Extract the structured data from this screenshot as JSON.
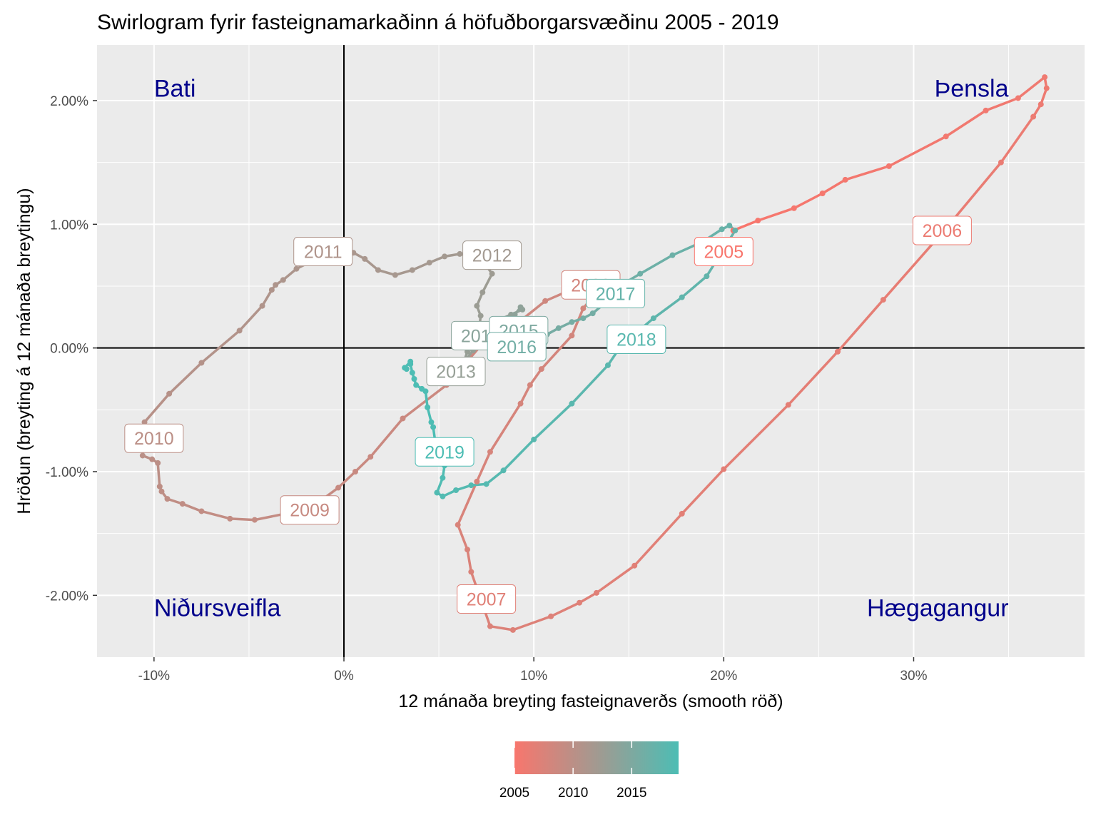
{
  "chart_data": {
    "type": "line",
    "title": "Swirlogram fyrir fasteignamarkaðinn á höfuðborgarsvæðinu 2005 - 2019",
    "xlabel": "12 mánaða breyting fasteignaverðs (smooth röð)",
    "ylabel": "Hröðun (breyting á 12 mánaða breytingu)",
    "xlim": [
      -13,
      39
    ],
    "ylim": [
      -2.5,
      2.45
    ],
    "x_ticks": [
      -10,
      0,
      10,
      20,
      30
    ],
    "x_tick_labels": [
      "-10%",
      "0%",
      "10%",
      "20%",
      "30%"
    ],
    "y_ticks": [
      -2,
      -1,
      0,
      1,
      2
    ],
    "y_tick_labels": [
      "-2.00%",
      "-1.00%",
      "0.00%",
      "1.00%",
      "2.00%"
    ],
    "grid": true,
    "reference_lines": {
      "x": 0,
      "y": 0
    },
    "quadrant_labels": [
      {
        "text": "Bati",
        "x": -10,
        "y": 2.1,
        "anchor": "start"
      },
      {
        "text": "Þensla",
        "x": 35,
        "y": 2.1,
        "anchor": "end"
      },
      {
        "text": "Niðursveifla",
        "x": -10,
        "y": -2.1,
        "anchor": "start"
      },
      {
        "text": "Hægagangur",
        "x": 35,
        "y": -2.1,
        "anchor": "end"
      }
    ],
    "color_scale": {
      "from": "#f8766d",
      "to": "#4dbdb4",
      "min": 2005,
      "max": 2019
    },
    "legend": {
      "position": "bottom",
      "ticks": [
        2005,
        2010,
        2015
      ],
      "tick_labels": [
        "2005",
        "2010",
        "2015"
      ]
    },
    "path": [
      {
        "x": 20.5,
        "y": 0.95,
        "t": 2005.0
      },
      {
        "x": 21.8,
        "y": 1.03,
        "t": 2005.08
      },
      {
        "x": 23.7,
        "y": 1.13,
        "t": 2005.17
      },
      {
        "x": 25.2,
        "y": 1.25,
        "t": 2005.25
      },
      {
        "x": 26.4,
        "y": 1.36,
        "t": 2005.33
      },
      {
        "x": 28.7,
        "y": 1.47,
        "t": 2005.42
      },
      {
        "x": 31.7,
        "y": 1.71,
        "t": 2005.5
      },
      {
        "x": 33.8,
        "y": 1.92,
        "t": 2005.58
      },
      {
        "x": 35.5,
        "y": 2.02,
        "t": 2005.67
      },
      {
        "x": 36.9,
        "y": 2.19,
        "t": 2005.75
      },
      {
        "x": 37.0,
        "y": 2.1,
        "t": 2005.83
      },
      {
        "x": 36.7,
        "y": 1.97,
        "t": 2005.92
      },
      {
        "x": 36.3,
        "y": 1.87,
        "t": 2006.0
      },
      {
        "x": 34.6,
        "y": 1.5,
        "t": 2006.17
      },
      {
        "x": 31.5,
        "y": 0.93,
        "t": 2006.33
      },
      {
        "x": 28.4,
        "y": 0.39,
        "t": 2006.5
      },
      {
        "x": 26.0,
        "y": -0.03,
        "t": 2006.58
      },
      {
        "x": 23.4,
        "y": -0.46,
        "t": 2006.67
      },
      {
        "x": 20.0,
        "y": -0.98,
        "t": 2006.75
      },
      {
        "x": 17.8,
        "y": -1.34,
        "t": 2006.83
      },
      {
        "x": 15.3,
        "y": -1.76,
        "t": 2006.92
      },
      {
        "x": 13.3,
        "y": -1.98,
        "t": 2007.0
      },
      {
        "x": 12.4,
        "y": -2.06,
        "t": 2007.08
      },
      {
        "x": 10.9,
        "y": -2.17,
        "t": 2007.17
      },
      {
        "x": 8.9,
        "y": -2.28,
        "t": 2007.25
      },
      {
        "x": 7.7,
        "y": -2.25,
        "t": 2007.33
      },
      {
        "x": 6.7,
        "y": -1.81,
        "t": 2007.42
      },
      {
        "x": 6.5,
        "y": -1.63,
        "t": 2007.5
      },
      {
        "x": 6.0,
        "y": -1.43,
        "t": 2007.58
      },
      {
        "x": 7.0,
        "y": -1.08,
        "t": 2007.67
      },
      {
        "x": 7.7,
        "y": -0.84,
        "t": 2007.75
      },
      {
        "x": 9.3,
        "y": -0.45,
        "t": 2007.83
      },
      {
        "x": 9.8,
        "y": -0.3,
        "t": 2007.92
      },
      {
        "x": 10.4,
        "y": -0.17,
        "t": 2008.0
      },
      {
        "x": 12.0,
        "y": 0.1,
        "t": 2008.08
      },
      {
        "x": 12.6,
        "y": 0.32,
        "t": 2008.17
      },
      {
        "x": 13.3,
        "y": 0.45,
        "t": 2008.25
      },
      {
        "x": 12.4,
        "y": 0.5,
        "t": 2008.33
      },
      {
        "x": 10.6,
        "y": 0.38,
        "t": 2008.42
      },
      {
        "x": 9.3,
        "y": 0.22,
        "t": 2008.5
      },
      {
        "x": 7.5,
        "y": 0.07,
        "t": 2008.58
      },
      {
        "x": 5.4,
        "y": -0.3,
        "t": 2008.67
      },
      {
        "x": 3.1,
        "y": -0.57,
        "t": 2008.75
      },
      {
        "x": 1.4,
        "y": -0.88,
        "t": 2008.83
      },
      {
        "x": 0.6,
        "y": -1.0,
        "t": 2008.92
      },
      {
        "x": -0.3,
        "y": -1.13,
        "t": 2009.0
      },
      {
        "x": -1.8,
        "y": -1.3,
        "t": 2009.17
      },
      {
        "x": -4.7,
        "y": -1.39,
        "t": 2009.33
      },
      {
        "x": -6.0,
        "y": -1.38,
        "t": 2009.42
      },
      {
        "x": -7.5,
        "y": -1.32,
        "t": 2009.5
      },
      {
        "x": -8.5,
        "y": -1.26,
        "t": 2009.58
      },
      {
        "x": -9.3,
        "y": -1.22,
        "t": 2009.67
      },
      {
        "x": -9.6,
        "y": -1.16,
        "t": 2009.75
      },
      {
        "x": -9.7,
        "y": -1.12,
        "t": 2009.83
      },
      {
        "x": -9.8,
        "y": -0.93,
        "t": 2009.92
      },
      {
        "x": -10.1,
        "y": -0.9,
        "t": 2010.0
      },
      {
        "x": -10.6,
        "y": -0.87,
        "t": 2010.08
      },
      {
        "x": -10.5,
        "y": -0.6,
        "t": 2010.25
      },
      {
        "x": -9.2,
        "y": -0.37,
        "t": 2010.42
      },
      {
        "x": -7.5,
        "y": -0.12,
        "t": 2010.58
      },
      {
        "x": -5.5,
        "y": 0.14,
        "t": 2010.75
      },
      {
        "x": -4.3,
        "y": 0.34,
        "t": 2010.92
      },
      {
        "x": -3.8,
        "y": 0.47,
        "t": 2011.0
      },
      {
        "x": -3.6,
        "y": 0.51,
        "t": 2011.08
      },
      {
        "x": -3.2,
        "y": 0.55,
        "t": 2011.17
      },
      {
        "x": -2.5,
        "y": 0.64,
        "t": 2011.25
      },
      {
        "x": -1.2,
        "y": 0.74,
        "t": 2011.33
      },
      {
        "x": 0.5,
        "y": 0.77,
        "t": 2011.42
      },
      {
        "x": 1.1,
        "y": 0.72,
        "t": 2011.5
      },
      {
        "x": 1.8,
        "y": 0.63,
        "t": 2011.58
      },
      {
        "x": 2.7,
        "y": 0.59,
        "t": 2011.67
      },
      {
        "x": 3.6,
        "y": 0.63,
        "t": 2011.75
      },
      {
        "x": 4.5,
        "y": 0.69,
        "t": 2011.83
      },
      {
        "x": 5.3,
        "y": 0.74,
        "t": 2011.92
      },
      {
        "x": 6.1,
        "y": 0.76,
        "t": 2012.0
      },
      {
        "x": 6.7,
        "y": 0.75,
        "t": 2012.08
      },
      {
        "x": 7.2,
        "y": 0.73,
        "t": 2012.17
      },
      {
        "x": 7.8,
        "y": 0.6,
        "t": 2012.33
      },
      {
        "x": 7.3,
        "y": 0.45,
        "t": 2012.5
      },
      {
        "x": 7.0,
        "y": 0.34,
        "t": 2012.58
      },
      {
        "x": 7.2,
        "y": 0.26,
        "t": 2012.67
      },
      {
        "x": 7.1,
        "y": 0.12,
        "t": 2012.75
      },
      {
        "x": 6.8,
        "y": 0.03,
        "t": 2012.83
      },
      {
        "x": 6.5,
        "y": -0.03,
        "t": 2012.92
      },
      {
        "x": 6.3,
        "y": -0.12,
        "t": 2013.0
      },
      {
        "x": 6.8,
        "y": -0.02,
        "t": 2013.08
      },
      {
        "x": 7.3,
        "y": 0.08,
        "t": 2013.17
      },
      {
        "x": 7.7,
        "y": 0.17,
        "t": 2013.25
      },
      {
        "x": 8.2,
        "y": 0.23,
        "t": 2013.33
      },
      {
        "x": 8.8,
        "y": 0.27,
        "t": 2013.42
      },
      {
        "x": 9.4,
        "y": 0.31,
        "t": 2013.5
      },
      {
        "x": 9.3,
        "y": 0.33,
        "t": 2013.58
      },
      {
        "x": 9.0,
        "y": 0.27,
        "t": 2013.67
      },
      {
        "x": 8.6,
        "y": 0.2,
        "t": 2013.75
      },
      {
        "x": 8.0,
        "y": 0.13,
        "t": 2013.83
      },
      {
        "x": 7.7,
        "y": 0.09,
        "t": 2013.92
      },
      {
        "x": 7.8,
        "y": 0.07,
        "t": 2014.0
      },
      {
        "x": 7.9,
        "y": 0.05,
        "t": 2014.17
      },
      {
        "x": 8.1,
        "y": 0.03,
        "t": 2014.33
      },
      {
        "x": 8.0,
        "y": -0.02,
        "t": 2014.5
      },
      {
        "x": 8.0,
        "y": -0.05,
        "t": 2014.67
      },
      {
        "x": 8.1,
        "y": -0.08,
        "t": 2014.83
      },
      {
        "x": 8.3,
        "y": -0.06,
        "t": 2015.0
      },
      {
        "x": 8.8,
        "y": -0.01,
        "t": 2015.17
      },
      {
        "x": 9.4,
        "y": 0.05,
        "t": 2015.33
      },
      {
        "x": 10.1,
        "y": 0.08,
        "t": 2015.5
      },
      {
        "x": 10.7,
        "y": 0.11,
        "t": 2015.58
      },
      {
        "x": 11.3,
        "y": 0.16,
        "t": 2015.67
      },
      {
        "x": 12.0,
        "y": 0.21,
        "t": 2015.75
      },
      {
        "x": 12.6,
        "y": 0.24,
        "t": 2015.83
      },
      {
        "x": 13.1,
        "y": 0.28,
        "t": 2015.92
      },
      {
        "x": 13.8,
        "y": 0.37,
        "t": 2016.0
      },
      {
        "x": 14.5,
        "y": 0.5,
        "t": 2016.17
      },
      {
        "x": 15.6,
        "y": 0.6,
        "t": 2016.33
      },
      {
        "x": 17.3,
        "y": 0.75,
        "t": 2016.5
      },
      {
        "x": 18.9,
        "y": 0.86,
        "t": 2016.67
      },
      {
        "x": 19.9,
        "y": 0.96,
        "t": 2016.83
      },
      {
        "x": 20.3,
        "y": 0.99,
        "t": 2016.92
      },
      {
        "x": 20.6,
        "y": 0.95,
        "t": 2017.0
      },
      {
        "x": 20.2,
        "y": 0.85,
        "t": 2017.08
      },
      {
        "x": 19.1,
        "y": 0.58,
        "t": 2017.25
      },
      {
        "x": 17.8,
        "y": 0.41,
        "t": 2017.42
      },
      {
        "x": 16.3,
        "y": 0.24,
        "t": 2017.58
      },
      {
        "x": 14.6,
        "y": 0.02,
        "t": 2017.75
      },
      {
        "x": 13.9,
        "y": -0.14,
        "t": 2017.83
      },
      {
        "x": 12.0,
        "y": -0.45,
        "t": 2017.92
      },
      {
        "x": 10.0,
        "y": -0.74,
        "t": 2018.08
      },
      {
        "x": 8.4,
        "y": -0.99,
        "t": 2018.25
      },
      {
        "x": 7.5,
        "y": -1.1,
        "t": 2018.33
      },
      {
        "x": 6.7,
        "y": -1.11,
        "t": 2018.42
      },
      {
        "x": 5.9,
        "y": -1.15,
        "t": 2018.5
      },
      {
        "x": 5.2,
        "y": -1.2,
        "t": 2018.58
      },
      {
        "x": 4.9,
        "y": -1.17,
        "t": 2018.67
      },
      {
        "x": 5.2,
        "y": -1.05,
        "t": 2018.75
      },
      {
        "x": 5.3,
        "y": -0.95,
        "t": 2018.83
      },
      {
        "x": 4.8,
        "y": -0.75,
        "t": 2018.92
      },
      {
        "x": 4.7,
        "y": -0.64,
        "t": 2019.0
      },
      {
        "x": 4.6,
        "y": -0.6,
        "t": 2019.08
      },
      {
        "x": 4.4,
        "y": -0.48,
        "t": 2019.17
      },
      {
        "x": 4.3,
        "y": -0.35,
        "t": 2019.25
      },
      {
        "x": 4.1,
        "y": -0.33,
        "t": 2019.33
      },
      {
        "x": 3.8,
        "y": -0.3,
        "t": 2019.42
      },
      {
        "x": 3.7,
        "y": -0.25,
        "t": 2019.5
      },
      {
        "x": 3.6,
        "y": -0.2,
        "t": 2019.58
      },
      {
        "x": 3.5,
        "y": -0.13,
        "t": 2019.67
      },
      {
        "x": 3.5,
        "y": -0.11,
        "t": 2019.75
      },
      {
        "x": 3.2,
        "y": -0.16,
        "t": 2019.83
      },
      {
        "x": 3.3,
        "y": -0.17,
        "t": 2019.92
      }
    ],
    "year_labels": [
      {
        "text": "2005",
        "x": 20.0,
        "y": 0.78,
        "t": 2005
      },
      {
        "text": "2006",
        "x": 31.5,
        "y": 0.95,
        "t": 2006
      },
      {
        "text": "2007",
        "x": 7.5,
        "y": -2.03,
        "t": 2007
      },
      {
        "text": "2008",
        "x": 13.0,
        "y": 0.51,
        "t": 2008
      },
      {
        "text": "2009",
        "x": -1.8,
        "y": -1.31,
        "t": 2009
      },
      {
        "text": "2010",
        "x": -10.0,
        "y": -0.73,
        "t": 2010
      },
      {
        "text": "2011",
        "x": -1.1,
        "y": 0.78,
        "t": 2011
      },
      {
        "text": "2012",
        "x": 7.8,
        "y": 0.75,
        "t": 2012
      },
      {
        "text": "2013",
        "x": 5.9,
        "y": -0.19,
        "t": 2013
      },
      {
        "text": "2014",
        "x": 7.2,
        "y": 0.1,
        "t": 2014
      },
      {
        "text": "2015",
        "x": 9.2,
        "y": 0.14,
        "t": 2015
      },
      {
        "text": "2016",
        "x": 9.1,
        "y": 0.01,
        "t": 2016
      },
      {
        "text": "2017",
        "x": 14.3,
        "y": 0.44,
        "t": 2017
      },
      {
        "text": "2018",
        "x": 15.4,
        "y": 0.07,
        "t": 2018
      },
      {
        "text": "2019",
        "x": 5.3,
        "y": -0.84,
        "t": 2019
      }
    ]
  }
}
